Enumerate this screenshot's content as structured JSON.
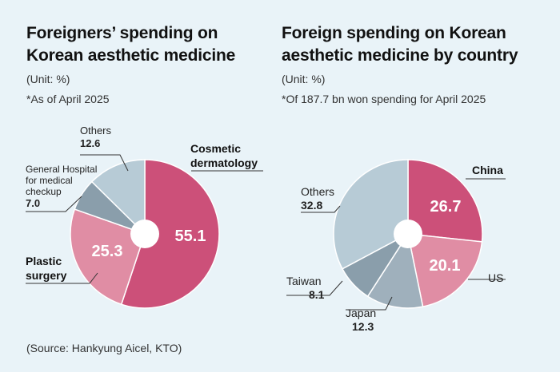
{
  "colors": {
    "background": "#e9f3f8",
    "pink_dark": "#cc5079",
    "pink_light": "#e08da4",
    "slate": "#8a9eab",
    "blue_light": "#b7cbd6",
    "slate_mid": "#9fb0bc"
  },
  "left": {
    "title_line1": "Foreigners’ spending on",
    "title_line2": "Korean aesthetic medicine",
    "unit": "(Unit: %)",
    "note": "*As of April 2025"
  },
  "right": {
    "title_line1": "Foreign spending on Korean",
    "title_line2": "aesthetic medicine by country",
    "unit": "(Unit: %)",
    "note": "*Of 187.7 bn won spending for April 2025"
  },
  "source": "(Source: Hankyung Aicel, KTO)",
  "chart_data": [
    {
      "type": "pie",
      "title": "Foreigners’ spending on Korean aesthetic medicine",
      "unit": "%",
      "slices": [
        {
          "name": "Cosmetic dermatology",
          "line1": "Cosmetic",
          "line2": "dermatology",
          "value": 55.1,
          "display": "55.1"
        },
        {
          "name": "Plastic surgery",
          "line1": "Plastic",
          "line2": "surgery",
          "value": 25.3,
          "display": "25.3"
        },
        {
          "name": "General Hospital for medical checkup",
          "line1": "General Hospital",
          "line2": "for medical",
          "line3": "checkup",
          "value": 7.0,
          "display": "7.0"
        },
        {
          "name": "Others",
          "line1": "Others",
          "value": 12.6,
          "display": "12.6"
        }
      ]
    },
    {
      "type": "pie",
      "title": "Foreign spending on Korean aesthetic medicine by country",
      "unit": "%",
      "slices": [
        {
          "name": "China",
          "value": 26.7,
          "display": "26.7"
        },
        {
          "name": "US",
          "value": 20.1,
          "display": "20.1"
        },
        {
          "name": "Japan",
          "value": 12.3,
          "display": "12.3"
        },
        {
          "name": "Taiwan",
          "value": 8.1,
          "display": "8.1"
        },
        {
          "name": "Others",
          "value": 32.8,
          "display": "32.8"
        }
      ]
    }
  ]
}
